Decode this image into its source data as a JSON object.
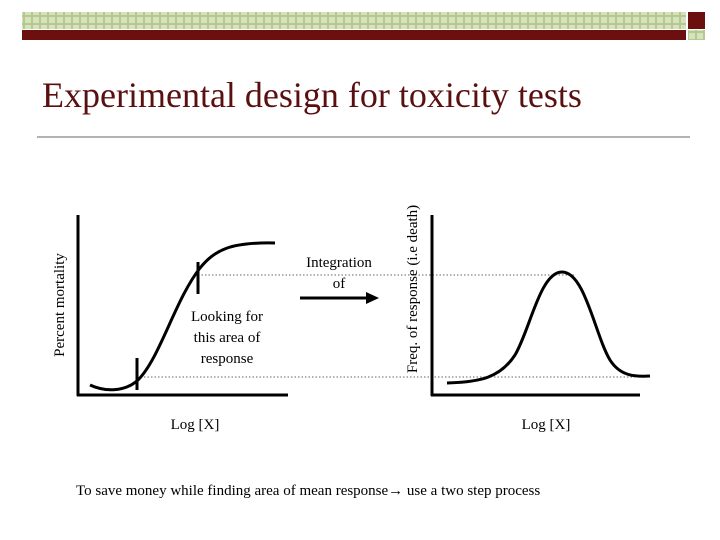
{
  "title": "Experimental design for toxicity tests",
  "left_panel": {
    "y_label": "Percent mortality",
    "x_label": "Log [X]",
    "annotation": [
      "Looking for",
      "this area of",
      "response"
    ]
  },
  "transition": {
    "label": [
      "Integration",
      "of"
    ]
  },
  "right_panel": {
    "y_label": "Freq. of  response (i.e death)",
    "x_label": "Log [X]"
  },
  "footer": "To save money while finding area of mean response→ use a two step process"
}
